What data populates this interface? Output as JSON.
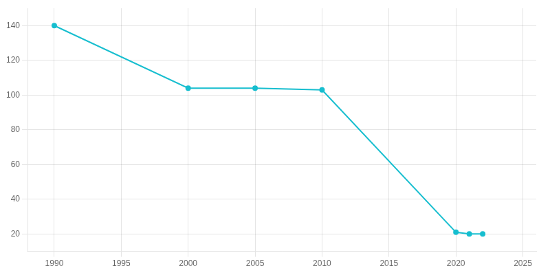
{
  "chart_data": {
    "type": "line",
    "x": [
      1990,
      2000,
      2005,
      2010,
      2020,
      2021,
      2022
    ],
    "values": [
      140,
      104,
      104,
      103,
      21,
      20,
      20
    ],
    "color": "#17BECF",
    "marker": "circle",
    "xlim": [
      1988,
      2026
    ],
    "ylim": [
      10,
      150
    ],
    "xticks": [
      1990,
      1995,
      2000,
      2005,
      2010,
      2015,
      2020,
      2025
    ],
    "yticks": [
      20,
      40,
      60,
      80,
      100,
      120,
      140
    ],
    "grid": true
  }
}
